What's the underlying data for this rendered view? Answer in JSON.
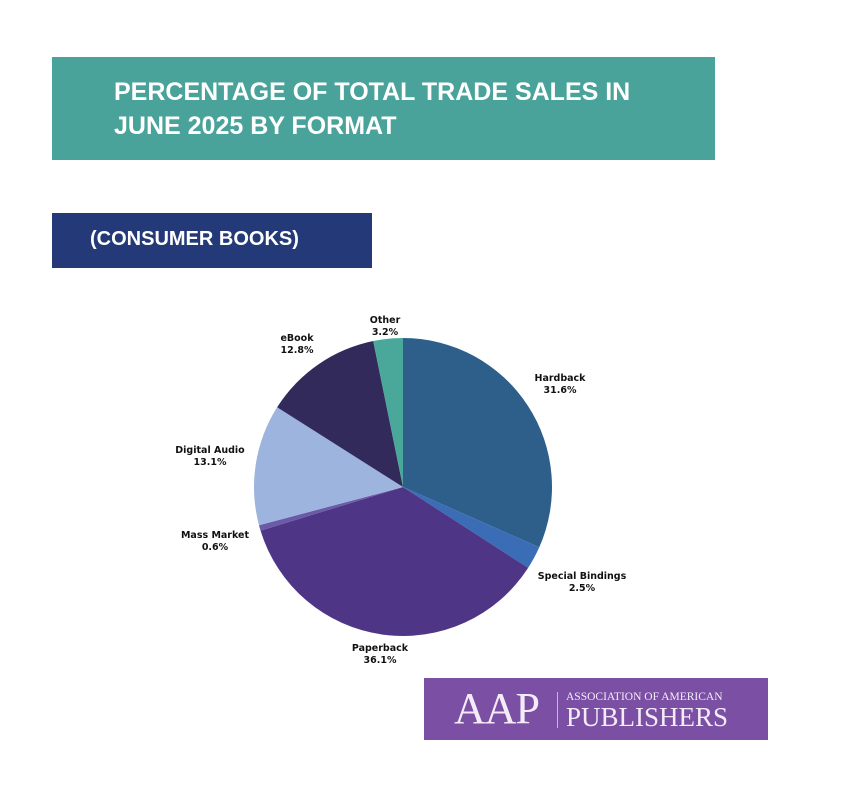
{
  "header": {
    "title": "PERCENTAGE OF TOTAL TRADE SALES IN JUNE 2025 BY FORMAT",
    "subtitle": "(CONSUMER BOOKS)"
  },
  "chart_data": {
    "type": "pie",
    "title": "PERCENTAGE OF TOTAL TRADE SALES IN JUNE 2025 BY FORMAT",
    "subtitle": "(CONSUMER BOOKS)",
    "start": "12 o'clock, clockwise",
    "slices": [
      {
        "label": "Hardback",
        "value": 31.6,
        "value_label": "31.6%",
        "color": "#2e5f8a"
      },
      {
        "label": "Special Bindings",
        "value": 2.5,
        "value_label": "2.5%",
        "color": "#3a6db5"
      },
      {
        "label": "Paperback",
        "value": 36.1,
        "value_label": "36.1%",
        "color": "#4f3585"
      },
      {
        "label": "Mass Market",
        "value": 0.6,
        "value_label": "0.6%",
        "color": "#6a5aa8"
      },
      {
        "label": "Digital Audio",
        "value": 13.1,
        "value_label": "13.1%",
        "color": "#9db4de"
      },
      {
        "label": "eBook",
        "value": 12.8,
        "value_label": "12.8%",
        "color": "#332a5c"
      },
      {
        "label": "Other",
        "value": 3.2,
        "value_label": "3.2%",
        "color": "#4aa89a"
      }
    ]
  },
  "logo": {
    "mark": "AAP",
    "line1": "ASSOCIATION OF AMERICAN",
    "line2": "PUBLISHERS"
  }
}
